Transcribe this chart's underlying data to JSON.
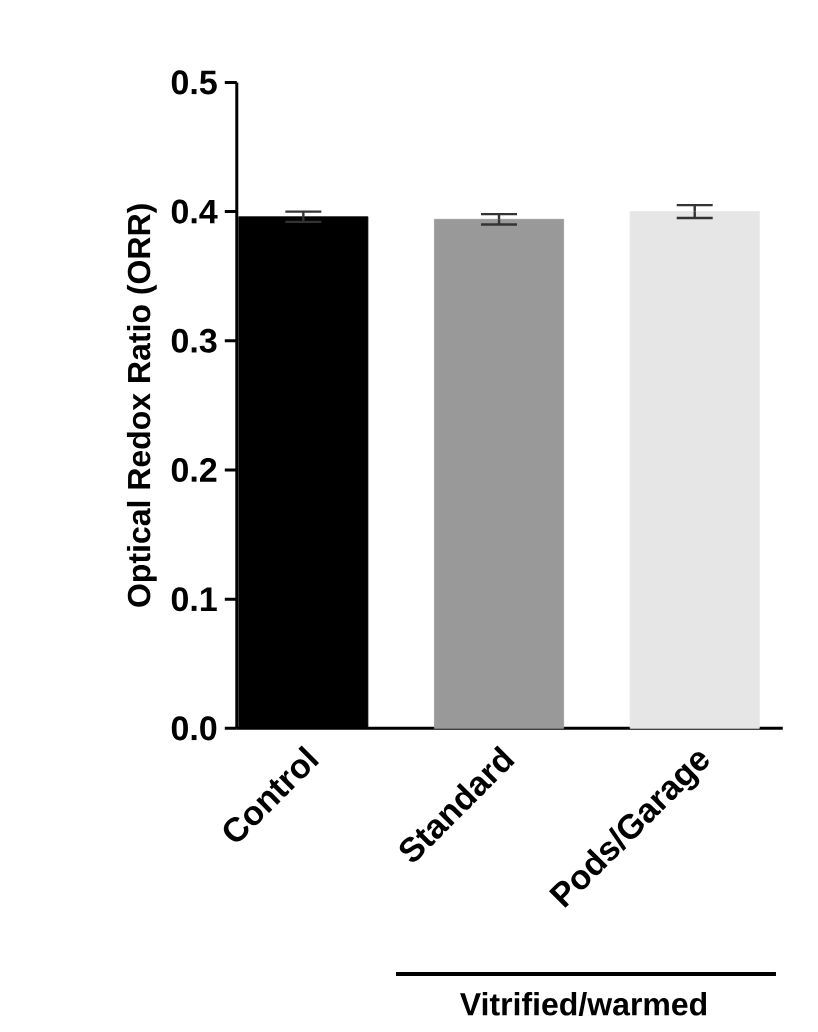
{
  "chart_data": {
    "type": "bar",
    "ylabel": "Optical Redox Ratio (ORR)",
    "categories": [
      "Control",
      "Standard",
      "Pods/Garage"
    ],
    "values": [
      0.396,
      0.394,
      0.4
    ],
    "errors": [
      0.004,
      0.004,
      0.005
    ],
    "colors": [
      "#000000",
      "#999999",
      "#e6e6e6"
    ],
    "ylim": [
      0,
      0.5
    ],
    "yticks": [
      {
        "value": 0,
        "label": "0.0"
      },
      0.1,
      0.2,
      0.3,
      0.4,
      0.5
    ],
    "annotations": [
      "Vitrified/warmed"
    ]
  }
}
